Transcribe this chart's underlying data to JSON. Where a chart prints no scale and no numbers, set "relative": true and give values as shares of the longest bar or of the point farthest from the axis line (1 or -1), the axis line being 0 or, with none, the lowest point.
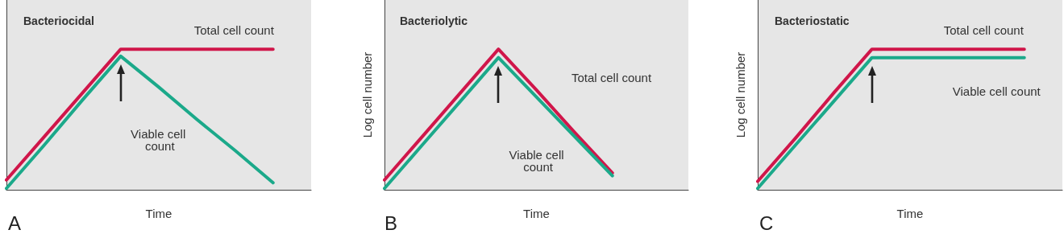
{
  "chart_data": [
    {
      "type": "line",
      "title": "Bacteriocidal",
      "xlabel": "Time",
      "annotations": [
        "A"
      ],
      "relative": true,
      "tick_labels": false,
      "grid": false,
      "legend": false,
      "marker": "none",
      "line_style": "solid",
      "categories": [
        null,
        null,
        null,
        null,
        null,
        null,
        null,
        null,
        null
      ],
      "series": [
        {
          "name": "Total cell count",
          "color": "#d0164a",
          "values": [
            0.07,
            0.38,
            0.69,
            1,
            1,
            1,
            1,
            1,
            null
          ]
        },
        {
          "name": "Viable cell count",
          "color": "#1ba98a",
          "values": [
            0.01,
            0.32,
            0.64,
            0.95,
            0.73,
            0.5,
            0.28,
            0.05,
            null
          ]
        }
      ]
    },
    {
      "type": "line",
      "title": "Bacteriolytic",
      "xlabel": "Time",
      "ylabel": "Log cell number",
      "annotations": [
        "B"
      ],
      "relative": true,
      "tick_labels": false,
      "grid": false,
      "legend": false,
      "marker": "none",
      "line_style": "solid",
      "categories": [
        null,
        null,
        null,
        null,
        null,
        null,
        null,
        null,
        null
      ],
      "series": [
        {
          "name": "Total cell count",
          "color": "#d0164a",
          "values": [
            0.07,
            0.38,
            0.69,
            1,
            0.71,
            0.41,
            0.12,
            null,
            null
          ]
        },
        {
          "name": "Viable cell count",
          "color": "#1ba98a",
          "values": [
            0.01,
            0.32,
            0.63,
            0.94,
            0.66,
            0.38,
            0.1,
            null,
            null
          ]
        }
      ]
    },
    {
      "type": "line",
      "title": "Bacteriostatic",
      "xlabel": "Time",
      "ylabel": "Log cell number",
      "annotations": [
        "C"
      ],
      "relative": true,
      "tick_labels": false,
      "grid": false,
      "legend": false,
      "marker": "none",
      "line_style": "solid",
      "categories": [
        null,
        null,
        null,
        null,
        null,
        null,
        null,
        null,
        null
      ],
      "series": [
        {
          "name": "Total cell count",
          "color": "#d0164a",
          "values": [
            0.06,
            0.37,
            0.69,
            1,
            1,
            1,
            1,
            1,
            null
          ]
        },
        {
          "name": "Viable cell count",
          "color": "#1ba98a",
          "values": [
            0.01,
            0.32,
            0.63,
            0.94,
            0.94,
            0.94,
            0.94,
            0.94,
            null
          ]
        }
      ]
    }
  ]
}
